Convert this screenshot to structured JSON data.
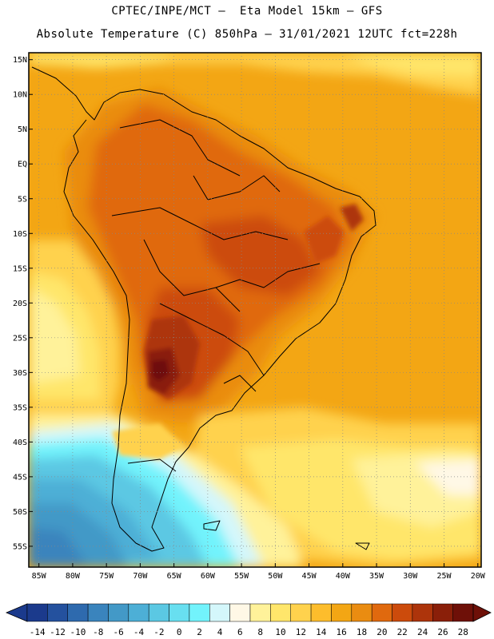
{
  "header": {
    "line1": "CPTEC/INPE/MCT —  Eta Model 15km — GFS",
    "line2": "Absolute Temperature (C) 850hPa — 31/01/2021 12UTC fct=228h"
  },
  "map": {
    "lat_labels": [
      "15N",
      "10N",
      "5N",
      "EQ",
      "5S",
      "10S",
      "15S",
      "20S",
      "25S",
      "30S",
      "35S",
      "40S",
      "45S",
      "50S",
      "55S"
    ],
    "lon_labels": [
      "85W",
      "80W",
      "75W",
      "70W",
      "65W",
      "60W",
      "55W",
      "50W",
      "45W",
      "40W",
      "35W",
      "30W",
      "25W",
      "20W"
    ],
    "lon_range": [
      -86.5,
      -19.5
    ],
    "lat_range": [
      -58,
      16
    ]
  },
  "colorbar": {
    "labels": [
      "-14",
      "-12",
      "-10",
      "-8",
      "-6",
      "-4",
      "-2",
      "0",
      "2",
      "4",
      "6",
      "8",
      "10",
      "12",
      "14",
      "16",
      "18",
      "20",
      "22",
      "24",
      "26",
      "28"
    ],
    "colors": [
      "#1b3a8c",
      "#24519e",
      "#2e6aae",
      "#3a84bd",
      "#4399c7",
      "#4dafd6",
      "#5bc8e3",
      "#68dff0",
      "#72f3fc",
      "#d4f7fb",
      "#fff8e6",
      "#fff29a",
      "#ffe66b",
      "#ffd24d",
      "#fdbd2c",
      "#f3a614",
      "#ea8c11",
      "#e0690e",
      "#cc4b0c",
      "#ad340b",
      "#8a1f09",
      "#6e1008"
    ]
  }
}
